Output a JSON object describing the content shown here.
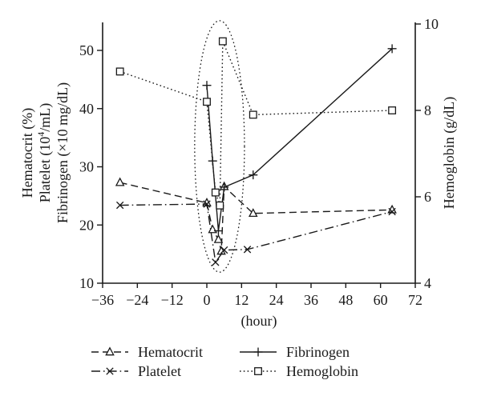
{
  "figure": {
    "background": "#ffffff",
    "ink": "#1a1a1a"
  },
  "chart_data": {
    "type": "line",
    "title": "",
    "xlabel": "(hour)",
    "grid": false,
    "legend_position": "below",
    "x_axis": {
      "min": -36,
      "max": 72,
      "ticks": [
        -36,
        -24,
        -12,
        0,
        12,
        24,
        36,
        48,
        60,
        72
      ]
    },
    "left_axis": {
      "label_lines": [
        "Hematocrit (%)",
        "Platelet (10^4/mL)",
        "Fibrinogen (×10 mg/dL)"
      ],
      "min": 10,
      "max": 55,
      "ticks": [
        10,
        20,
        30,
        40,
        50
      ]
    },
    "right_axis": {
      "label": "Hemoglobin (g/dL)",
      "min": 4,
      "max": 10,
      "ticks": [
        4,
        6,
        8,
        10
      ]
    },
    "series": [
      {
        "name": "Hematocrit",
        "axis": "left",
        "marker": "triangle",
        "line": "dashed",
        "points": [
          [
            -30,
            27.3
          ],
          [
            0,
            23.8
          ],
          [
            2,
            19.2
          ],
          [
            4,
            17.5
          ],
          [
            5,
            15.5
          ],
          [
            6,
            26.6
          ],
          [
            16,
            22.0
          ],
          [
            64,
            22.6
          ]
        ]
      },
      {
        "name": "Platelet",
        "axis": "left",
        "marker": "x",
        "line": "dashdot",
        "points": [
          [
            -30,
            23.4
          ],
          [
            0,
            23.6
          ],
          [
            3,
            13.6
          ],
          [
            6,
            15.7
          ],
          [
            14,
            15.8
          ],
          [
            64,
            22.3
          ]
        ]
      },
      {
        "name": "Fibrinogen",
        "axis": "left",
        "marker": "plus",
        "line": "solid",
        "points": [
          [
            0,
            44.0
          ],
          [
            2,
            31.0
          ],
          [
            4,
            19.0
          ],
          [
            6,
            26.5
          ],
          [
            16,
            28.6
          ],
          [
            64,
            50.3
          ]
        ]
      },
      {
        "name": "Hemoglobin",
        "axis": "right",
        "marker": "square",
        "line": "dotted",
        "points": [
          [
            -30,
            8.9
          ],
          [
            0,
            8.2
          ],
          [
            3,
            6.1
          ],
          [
            4.5,
            5.8
          ],
          [
            5.5,
            9.6
          ],
          [
            16,
            7.9
          ],
          [
            64,
            8.0
          ]
        ]
      }
    ],
    "annotations": [
      {
        "type": "ellipse",
        "style": "dotted",
        "center_hour": 4.4,
        "radius_hours": 8.6,
        "center_left_value": 33.5,
        "radius_left_value": 21.6
      }
    ],
    "legend": [
      {
        "series": "Hematocrit",
        "col": 0,
        "row": 0
      },
      {
        "series": "Platelet",
        "col": 0,
        "row": 1
      },
      {
        "series": "Fibrinogen",
        "col": 1,
        "row": 0
      },
      {
        "series": "Hemoglobin",
        "col": 1,
        "row": 1
      }
    ]
  }
}
